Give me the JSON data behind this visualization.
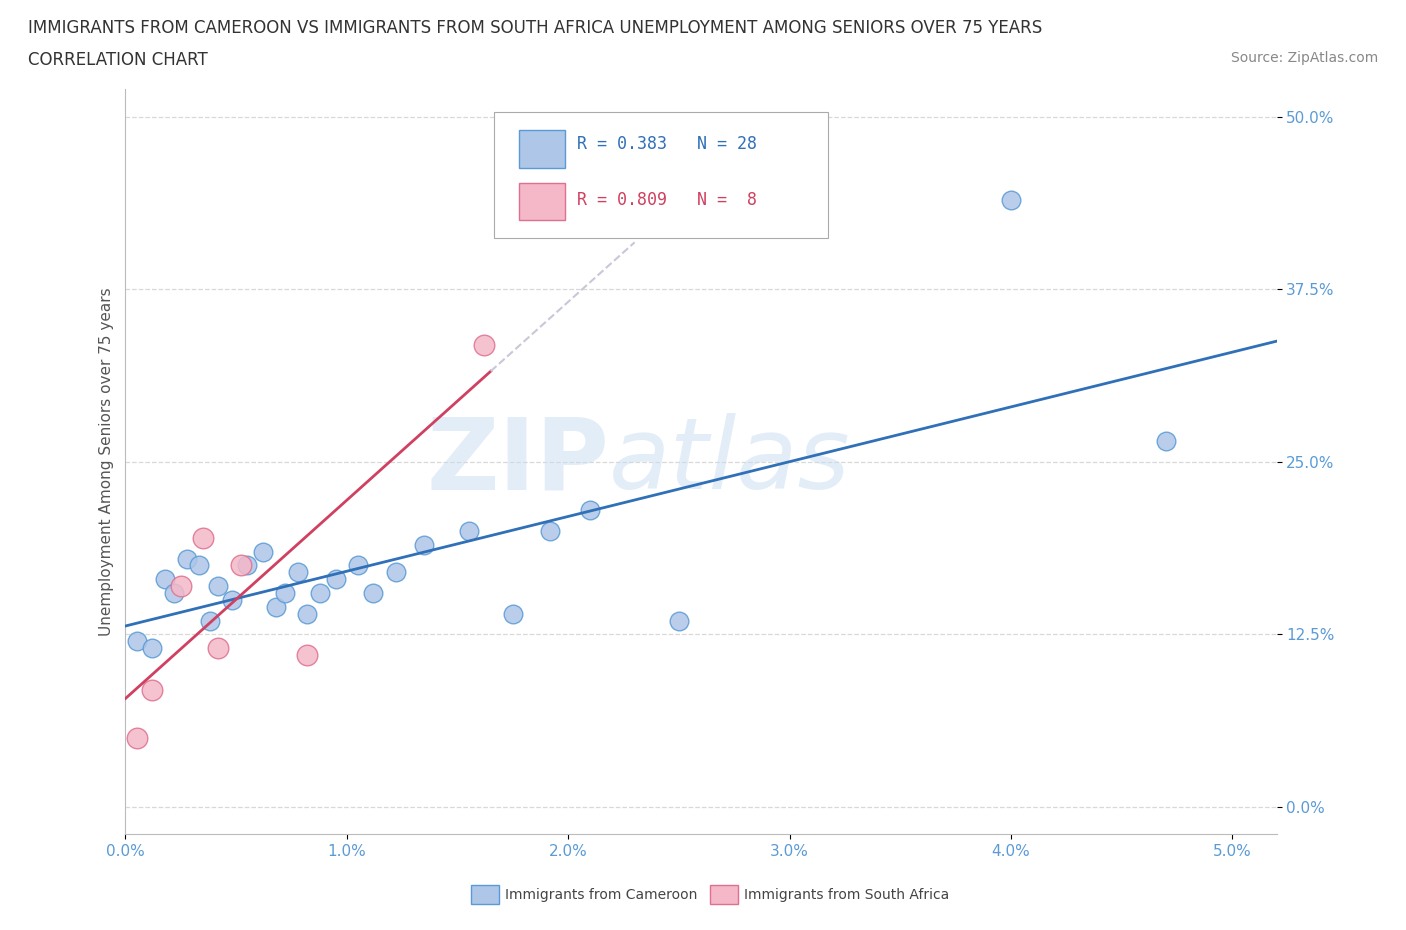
{
  "title_line1": "IMMIGRANTS FROM CAMEROON VS IMMIGRANTS FROM SOUTH AFRICA UNEMPLOYMENT AMONG SENIORS OVER 75 YEARS",
  "title_line2": "CORRELATION CHART",
  "source": "Source: ZipAtlas.com",
  "xlim": [
    0.0,
    5.2
  ],
  "ylim": [
    -2.0,
    52.0
  ],
  "ytick_vals": [
    0.0,
    12.5,
    25.0,
    37.5,
    50.0
  ],
  "xtick_vals": [
    0.0,
    1.0,
    2.0,
    3.0,
    4.0,
    5.0
  ],
  "legend_entry1": "R = 0.383   N = 28",
  "legend_entry2": "R = 0.809   N =  8",
  "legend_label1": "Immigrants from Cameroon",
  "legend_label2": "Immigrants from South Africa",
  "cameroon_x": [
    0.05,
    0.12,
    0.18,
    0.22,
    0.28,
    0.33,
    0.38,
    0.42,
    0.48,
    0.55,
    0.62,
    0.68,
    0.72,
    0.78,
    0.82,
    0.88,
    0.95,
    1.05,
    1.12,
    1.22,
    1.35,
    1.55,
    1.75,
    1.92,
    2.1,
    2.5,
    4.0,
    4.7
  ],
  "cameroon_y": [
    12.0,
    11.5,
    16.5,
    15.5,
    18.0,
    17.5,
    13.5,
    16.0,
    15.0,
    17.5,
    18.5,
    14.5,
    15.5,
    17.0,
    14.0,
    15.5,
    16.5,
    17.5,
    15.5,
    17.0,
    19.0,
    20.0,
    14.0,
    20.0,
    21.5,
    13.5,
    44.0,
    26.5
  ],
  "southafrica_x": [
    0.05,
    0.12,
    0.25,
    0.35,
    0.42,
    0.52,
    0.82,
    1.62
  ],
  "southafrica_y": [
    5.0,
    8.5,
    16.0,
    19.5,
    11.5,
    17.5,
    11.0,
    33.5
  ],
  "cameroon_color": "#aec6e8",
  "cameroon_edge": "#5b9bd5",
  "southafrica_color": "#f4b8c8",
  "southafrica_edge": "#e07090",
  "trendline_cam_color": "#3070b8",
  "trendline_sa_color": "#d04060",
  "trendline_sa_dashed_color": "#c8c8d8",
  "R_cameroon": 0.383,
  "N_cameroon": 28,
  "R_southafrica": 0.809,
  "N_southafrica": 8,
  "watermark_zip": "ZIP",
  "watermark_atlas": "atlas",
  "watermark_color_zip": "#c8ddf0",
  "watermark_color_atlas": "#c8ddf0",
  "grid_color": "#d8d8d8",
  "background": "#ffffff",
  "tick_color": "#5b9bd5",
  "ylabel_color": "#555555",
  "title_color": "#333333"
}
